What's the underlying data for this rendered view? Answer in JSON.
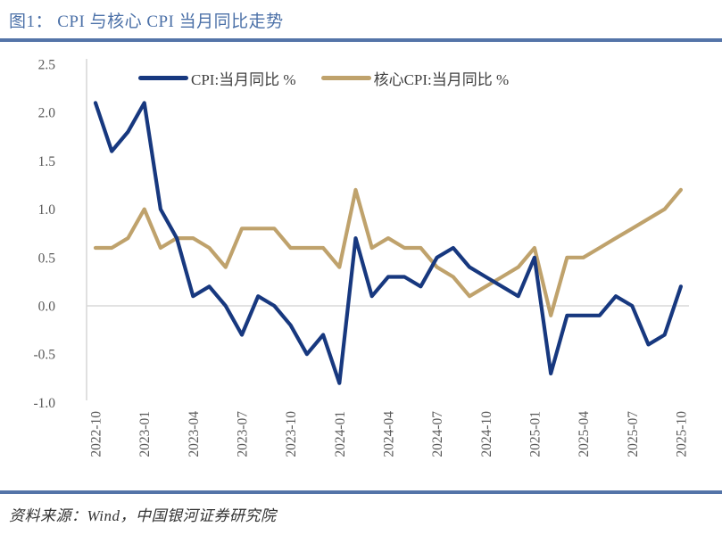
{
  "header": {
    "title": "图1： CPI 与核心 CPI 当月同比走势"
  },
  "footer": {
    "source": "资料来源：Wind，中国银河证券研究院"
  },
  "chart_data": {
    "type": "line",
    "title": "图1： CPI 与核心 CPI 当月同比走势",
    "xlabel": "",
    "ylabel": "",
    "x": [
      "2022-10",
      "2022-11",
      "2022-12",
      "2023-01",
      "2023-02",
      "2023-03",
      "2023-04",
      "2023-05",
      "2023-06",
      "2023-07",
      "2023-08",
      "2023-09",
      "2023-10",
      "2023-11",
      "2023-12",
      "2024-01",
      "2024-02",
      "2024-03",
      "2024-04",
      "2024-05",
      "2024-06",
      "2024-07",
      "2024-08",
      "2024-09",
      "2024-10",
      "2024-11",
      "2024-12",
      "2025-01",
      "2025-02",
      "2025-03",
      "2025-04",
      "2025-05",
      "2025-06",
      "2025-07",
      "2025-08",
      "2025-09",
      "2025-10"
    ],
    "x_tick_labels": [
      "2022-10",
      "2023-01",
      "2023-04",
      "2023-07",
      "2023-10",
      "2024-01",
      "2024-04",
      "2024-07",
      "2024-10",
      "2025-01",
      "2025-04",
      "2025-07",
      "2025-10"
    ],
    "x_tick_interval": 3,
    "series": [
      {
        "name": "CPI:当月同比 %",
        "color": "#17387F",
        "values": [
          2.1,
          1.6,
          1.8,
          2.1,
          1.0,
          0.7,
          0.1,
          0.2,
          0.0,
          -0.3,
          0.1,
          0.0,
          -0.2,
          -0.5,
          -0.3,
          -0.8,
          0.7,
          0.1,
          0.3,
          0.3,
          0.2,
          0.5,
          0.6,
          0.4,
          0.3,
          0.2,
          0.1,
          0.5,
          -0.7,
          -0.1,
          -0.1,
          -0.1,
          0.1,
          0.0,
          -0.4,
          -0.3,
          0.2
        ]
      },
      {
        "name": "核心CPI:当月同比 %",
        "color": "#BFA26C",
        "values": [
          0.6,
          0.6,
          0.7,
          1.0,
          0.6,
          0.7,
          0.7,
          0.6,
          0.4,
          0.8,
          0.8,
          0.8,
          0.6,
          0.6,
          0.6,
          0.4,
          1.2,
          0.6,
          0.7,
          0.6,
          0.6,
          0.4,
          0.3,
          0.1,
          0.2,
          0.3,
          0.4,
          0.6,
          -0.1,
          0.5,
          0.5,
          0.6,
          0.7,
          0.8,
          0.9,
          1.0,
          1.2
        ]
      }
    ],
    "ytick_labels": [
      "2.5",
      "2.0",
      "1.5",
      "1.0",
      "0.5",
      "0.0",
      "-0.5",
      "-1.0"
    ],
    "yticks": [
      2.5,
      2.0,
      1.5,
      1.0,
      0.5,
      0.0,
      -0.5,
      -1.0
    ],
    "ylim": [
      -1.0,
      2.5
    ],
    "grid": "zero-baseline-only",
    "legend_position": "top-inside",
    "colors": {
      "title_blue": "#4C71A8",
      "divider_blue": "#5474A8",
      "axis_gray": "#D9D9D9",
      "tick_text_gray": "#595959",
      "legend_text": "#404040"
    }
  }
}
